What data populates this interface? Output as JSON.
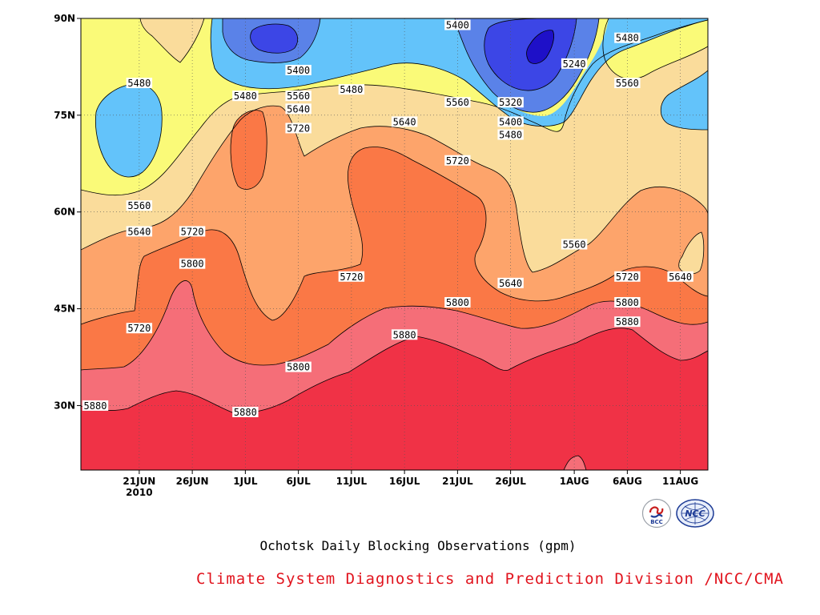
{
  "chart_data": {
    "type": "heatmap",
    "subtype": "filled-contour",
    "title": "Ochotsk Daily Blocking Observations (gpm)",
    "credit": "Climate System Diagnostics and Prediction Division /NCC/CMA",
    "x_ticks": [
      "21JUN",
      "26JUN",
      "1JUL",
      "6JUL",
      "11JUL",
      "16JUL",
      "21JUL",
      "26JUL",
      "1AUG",
      "6AUG",
      "11AUG"
    ],
    "x_year_label": "2010",
    "y_ticks": [
      "30N",
      "45N",
      "60N",
      "75N",
      "90N"
    ],
    "ylim": [
      "20N",
      "90N"
    ],
    "contour_levels": [
      5240,
      5320,
      5400,
      5480,
      5560,
      5640,
      5720,
      5800,
      5880
    ],
    "contour_labels": [
      {
        "value": "5400",
        "date": "21JUL",
        "lat": "89N"
      },
      {
        "value": "5400",
        "date": "6JUL",
        "lat": "82N"
      },
      {
        "value": "5480",
        "date": "6AUG",
        "lat": "87N"
      },
      {
        "value": "5240",
        "date": "1AUG",
        "lat": "83N"
      },
      {
        "value": "5480",
        "date": "21JUN",
        "lat": "80N"
      },
      {
        "value": "5480",
        "date": "1JUL",
        "lat": "78N"
      },
      {
        "value": "5560",
        "date": "6JUL",
        "lat": "78N"
      },
      {
        "value": "5480",
        "date": "11JUL",
        "lat": "79N"
      },
      {
        "value": "5560",
        "date": "21JUL",
        "lat": "77N"
      },
      {
        "value": "5320",
        "date": "26JUL",
        "lat": "77N"
      },
      {
        "value": "5560",
        "date": "6AUG",
        "lat": "80N"
      },
      {
        "value": "5640",
        "date": "6JUL",
        "lat": "76N"
      },
      {
        "value": "5400",
        "date": "26JUL",
        "lat": "74N"
      },
      {
        "value": "5640",
        "date": "16JUL",
        "lat": "74N"
      },
      {
        "value": "5720",
        "date": "6JUL",
        "lat": "73N"
      },
      {
        "value": "5480",
        "date": "26JUL",
        "lat": "72N"
      },
      {
        "value": "5720",
        "date": "21JUL",
        "lat": "68N"
      },
      {
        "value": "5560",
        "date": "21JUN",
        "lat": "61N"
      },
      {
        "value": "5640",
        "date": "21JUN",
        "lat": "57N"
      },
      {
        "value": "5720",
        "date": "26JUN",
        "lat": "57N"
      },
      {
        "value": "5560",
        "date": "1AUG",
        "lat": "55N"
      },
      {
        "value": "5800",
        "date": "26JUN",
        "lat": "52N"
      },
      {
        "value": "5720",
        "date": "11JUL",
        "lat": "50N"
      },
      {
        "value": "5720",
        "date": "6AUG",
        "lat": "50N"
      },
      {
        "value": "5640",
        "date": "11AUG",
        "lat": "50N"
      },
      {
        "value": "5640",
        "date": "26JUL",
        "lat": "49N"
      },
      {
        "value": "5800",
        "date": "21JUL",
        "lat": "46N"
      },
      {
        "value": "5800",
        "date": "6AUG",
        "lat": "46N"
      },
      {
        "value": "5880",
        "date": "6AUG",
        "lat": "43N"
      },
      {
        "value": "5720",
        "date": "21JUN",
        "lat": "42N"
      },
      {
        "value": "5880",
        "date": "16JUL",
        "lat": "41N"
      },
      {
        "value": "5800",
        "date": "6JUL",
        "lat": "36N"
      },
      {
        "value": "5880",
        "date": "16JUN",
        "lat": "30N"
      },
      {
        "value": "5880",
        "date": "1JUL",
        "lat": "29N"
      }
    ],
    "fill_colors": {
      "below_5240": "#1e10c8",
      "5240_5320": "#3c46e6",
      "5320_5400": "#5a82e8",
      "5400_5480": "#63c3fa",
      "5480_5560": "#fafa78",
      "5560_5640": "#fadc9b",
      "5640_5720": "#fda46b",
      "5720_5800": "#fa7846",
      "5800_5880": "#f56e78",
      "above_5880": "#f03246"
    },
    "grid": "dotted",
    "legend": "none"
  },
  "captions": {
    "title": "Ochotsk Daily Blocking Observations (gpm)",
    "org": "Climate System Diagnostics and Prediction Division /NCC/CMA"
  },
  "colors": {
    "org_text": "#e1141e",
    "logo_blue": "#1e3c96",
    "logo_red": "#c81e1e"
  },
  "logos": {
    "bcc": "BCC",
    "ncc": "NCC"
  }
}
